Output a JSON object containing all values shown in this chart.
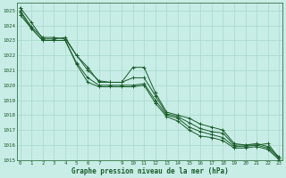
{
  "title": "Graphe pression niveau de la mer (hPa)",
  "bg_color": "#c8ece6",
  "grid_color": "#a8d8cc",
  "line_color": "#1a5c2a",
  "ylim": [
    1015,
    1025.5
  ],
  "xlim": [
    -0.3,
    23.3
  ],
  "yticks": [
    1015,
    1016,
    1017,
    1018,
    1019,
    1020,
    1021,
    1022,
    1023,
    1024,
    1025
  ],
  "series": [
    [
      1025.2,
      1024.2,
      1023.1,
      1023.1,
      1023.2,
      1022.0,
      1021.2,
      1020.2,
      1020.2,
      1020.2,
      1021.2,
      1021.2,
      1019.5,
      1018.2,
      1018.0,
      1017.8,
      1017.4,
      1017.2,
      1017.0,
      1016.1,
      1016.0,
      1016.0,
      1016.1,
      1015.1
    ],
    [
      1025.0,
      1023.9,
      1023.2,
      1023.2,
      1023.1,
      1022.0,
      1021.0,
      1020.3,
      1020.2,
      1020.2,
      1020.5,
      1020.5,
      1019.3,
      1018.1,
      1017.9,
      1017.5,
      1017.1,
      1016.9,
      1016.8,
      1016.0,
      1016.0,
      1016.1,
      1015.9,
      1015.2
    ],
    [
      1024.9,
      1023.8,
      1023.0,
      1023.0,
      1023.0,
      1021.5,
      1020.5,
      1020.0,
      1020.0,
      1020.0,
      1020.0,
      1020.1,
      1019.0,
      1018.0,
      1017.8,
      1017.2,
      1016.9,
      1016.7,
      1016.5,
      1015.9,
      1015.9,
      1016.0,
      1015.8,
      1015.1
    ],
    [
      1024.7,
      1023.8,
      1023.0,
      1023.0,
      1023.0,
      1021.4,
      1020.2,
      1019.9,
      1019.9,
      1019.9,
      1019.9,
      1020.0,
      1018.8,
      1017.9,
      1017.6,
      1017.0,
      1016.6,
      1016.5,
      1016.3,
      1015.8,
      1015.8,
      1015.9,
      1015.7,
      1015.0
    ]
  ]
}
